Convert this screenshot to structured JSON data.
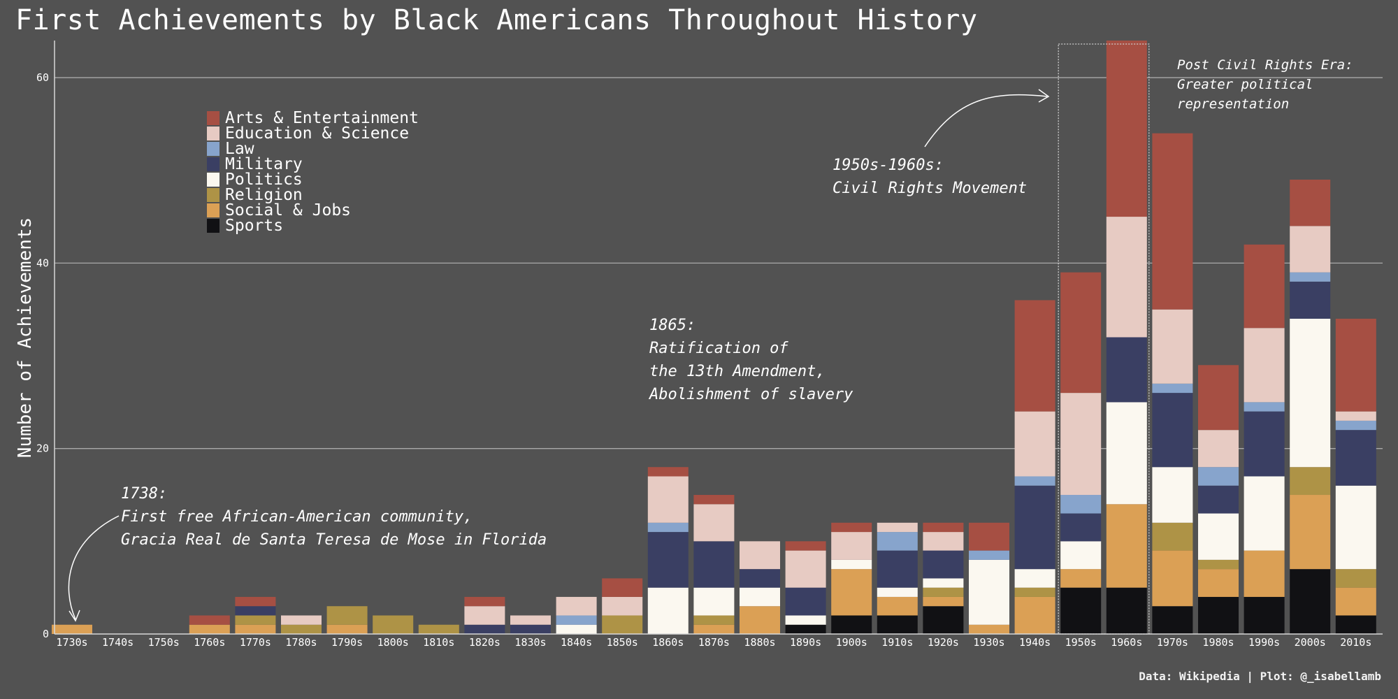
{
  "title": "First Achievements by Black Americans Throughout History",
  "credit": "Data: Wikipedia | Plot: @_isabellamb",
  "annotations": {
    "a1738": [
      "1738:",
      "First free African-American community,",
      "Gracia Real de Santa Teresa de Mose in Florida"
    ],
    "a1865": [
      "1865:",
      "Ratification of",
      "the 13th Amendment,",
      "Abolishment of slavery"
    ],
    "a1950s": [
      "1950s-1960s:",
      "Civil Rights Movement"
    ],
    "post": [
      "Post Civil Rights Era:",
      "Greater political",
      "representation"
    ]
  },
  "chart_data": {
    "type": "bar",
    "stacked": true,
    "title": "First Achievements by Black Americans Throughout History",
    "xlabel": "",
    "ylabel": "Number of Achievements",
    "ylim": [
      0,
      64
    ],
    "yticks": [
      0,
      20,
      40,
      60
    ],
    "grid": "horizontal",
    "legend_position": "top-left",
    "highlight_categories": [
      "1950s",
      "1960s"
    ],
    "categories": [
      "1730s",
      "1740s",
      "1750s",
      "1760s",
      "1770s",
      "1780s",
      "1790s",
      "1800s",
      "1810s",
      "1820s",
      "1830s",
      "1840s",
      "1850s",
      "1860s",
      "1870s",
      "1880s",
      "1890s",
      "1900s",
      "1910s",
      "1920s",
      "1930s",
      "1940s",
      "1950s",
      "1960s",
      "1970s",
      "1980s",
      "1990s",
      "2000s",
      "2010s"
    ],
    "series": [
      {
        "name": "Sports",
        "color": "#111114",
        "values": [
          0,
          0,
          0,
          0,
          0,
          0,
          0,
          0,
          0,
          0,
          0,
          0,
          0,
          0,
          0,
          0,
          1,
          2,
          2,
          3,
          0,
          0,
          5,
          5,
          3,
          4,
          4,
          7,
          2
        ]
      },
      {
        "name": "Social & Jobs",
        "color": "#dba055",
        "values": [
          1,
          0,
          0,
          1,
          1,
          0,
          1,
          0,
          0,
          0,
          0,
          0,
          0,
          0,
          1,
          3,
          0,
          5,
          2,
          1,
          1,
          4,
          2,
          9,
          6,
          3,
          5,
          8,
          3
        ]
      },
      {
        "name": "Religion",
        "color": "#ae9346",
        "values": [
          0,
          0,
          0,
          0,
          1,
          1,
          2,
          2,
          1,
          0,
          0,
          0,
          2,
          0,
          1,
          0,
          0,
          0,
          0,
          1,
          0,
          1,
          0,
          0,
          3,
          1,
          0,
          3,
          2
        ]
      },
      {
        "name": "Politics",
        "color": "#fbf8f0",
        "values": [
          0,
          0,
          0,
          0,
          0,
          0,
          0,
          0,
          0,
          0,
          0,
          1,
          0,
          5,
          3,
          2,
          1,
          1,
          1,
          1,
          7,
          2,
          3,
          11,
          6,
          5,
          8,
          16,
          9
        ]
      },
      {
        "name": "Military",
        "color": "#3a3f63",
        "values": [
          0,
          0,
          0,
          0,
          1,
          0,
          0,
          0,
          0,
          1,
          1,
          0,
          0,
          6,
          5,
          2,
          3,
          0,
          4,
          3,
          0,
          9,
          3,
          7,
          8,
          3,
          7,
          4,
          6
        ]
      },
      {
        "name": "Law",
        "color": "#87a4cc",
        "values": [
          0,
          0,
          0,
          0,
          0,
          0,
          0,
          0,
          0,
          0,
          0,
          1,
          0,
          1,
          0,
          0,
          0,
          0,
          2,
          0,
          1,
          1,
          2,
          0,
          1,
          2,
          1,
          1,
          1
        ]
      },
      {
        "name": "Education & Science",
        "color": "#e7cbc3",
        "values": [
          0,
          0,
          0,
          0,
          0,
          1,
          0,
          0,
          0,
          2,
          1,
          2,
          2,
          5,
          4,
          3,
          4,
          3,
          1,
          2,
          0,
          7,
          11,
          13,
          8,
          4,
          8,
          5,
          1
        ]
      },
      {
        "name": "Arts & Entertainment",
        "color": "#a64f43",
        "values": [
          0,
          0,
          0,
          1,
          1,
          0,
          0,
          0,
          0,
          1,
          0,
          0,
          2,
          1,
          1,
          0,
          1,
          1,
          0,
          1,
          3,
          12,
          13,
          19,
          19,
          7,
          9,
          5,
          10
        ]
      }
    ],
    "legend_order": [
      "Arts & Entertainment",
      "Education & Science",
      "Law",
      "Military",
      "Politics",
      "Religion",
      "Social & Jobs",
      "Sports"
    ]
  }
}
